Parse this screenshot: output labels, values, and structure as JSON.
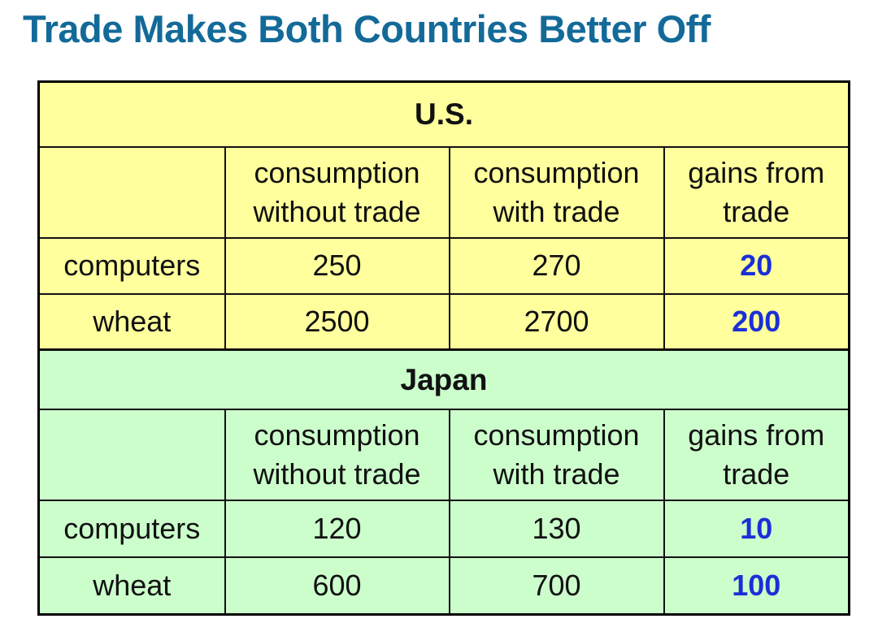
{
  "title": "Trade Makes Both Countries Better Off",
  "columns": {
    "without_line1": "consumption",
    "without_line2": "without trade",
    "with_line1": "consumption",
    "with_line2": "with trade",
    "gains_line1": "gains from",
    "gains_line2": "trade"
  },
  "us": {
    "name": "U.S.",
    "rows": [
      {
        "good": "computers",
        "without": "250",
        "with": "270",
        "gains": "20"
      },
      {
        "good": "wheat",
        "without": "2500",
        "with": "2700",
        "gains": "200"
      }
    ]
  },
  "japan": {
    "name": "Japan",
    "rows": [
      {
        "good": "computers",
        "without": "120",
        "with": "130",
        "gains": "10"
      },
      {
        "good": "wheat",
        "without": "600",
        "with": "700",
        "gains": "100"
      }
    ]
  },
  "colors": {
    "title": "#136a99",
    "us_background": "#ffff9d",
    "japan_background": "#ccfecc",
    "gains_text": "#1a2fd6"
  }
}
